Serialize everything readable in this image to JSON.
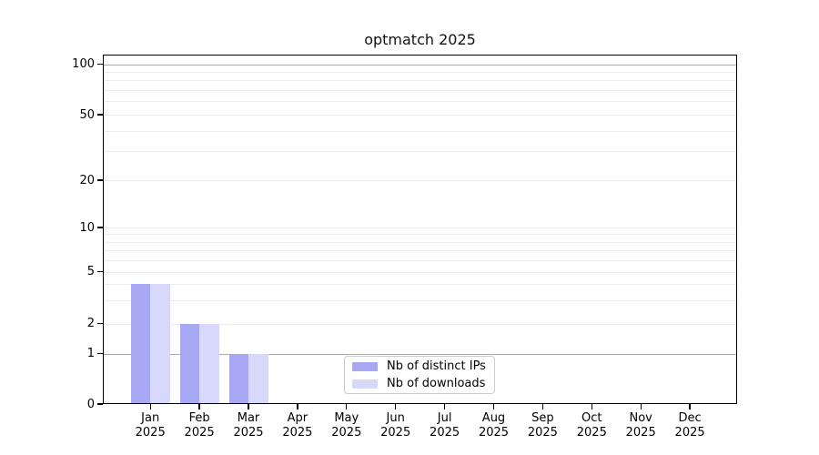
{
  "title": "optmatch 2025",
  "chart_data": {
    "type": "bar",
    "title": "optmatch 2025",
    "categories": [
      "Jan 2025",
      "Feb 2025",
      "Mar 2025",
      "Apr 2025",
      "May 2025",
      "Jun 2025",
      "Jul 2025",
      "Aug 2025",
      "Sep 2025",
      "Oct 2025",
      "Nov 2025",
      "Dec 2025"
    ],
    "series": [
      {
        "name": "Nb of distinct IPs",
        "color": "#a7a7f4",
        "values": [
          4,
          2,
          1,
          0,
          0,
          0,
          0,
          0,
          0,
          0,
          0,
          0
        ]
      },
      {
        "name": "Nb of downloads",
        "color": "#d8d8fa",
        "values": [
          4,
          2,
          1,
          0,
          0,
          0,
          0,
          0,
          0,
          0,
          0,
          0
        ]
      }
    ],
    "xlabel": "",
    "ylabel": "",
    "yscale": "log-like (symlog, linear below 1)",
    "ylim": [
      0,
      114
    ],
    "yticks": [
      0,
      1,
      2,
      5,
      10,
      20,
      50,
      100
    ],
    "minor_gridlines": [
      3,
      4,
      6,
      7,
      8,
      9,
      30,
      40,
      60,
      70,
      80,
      90
    ],
    "emphasized_gridlines": [
      1,
      100
    ],
    "grid": true,
    "legend_position": "lower center",
    "colors": {
      "grid": "#ececec",
      "grid_emphasis": "#ababab",
      "frame": "#000000",
      "legend_border": "#cccccc",
      "background": "#ffffff"
    }
  }
}
